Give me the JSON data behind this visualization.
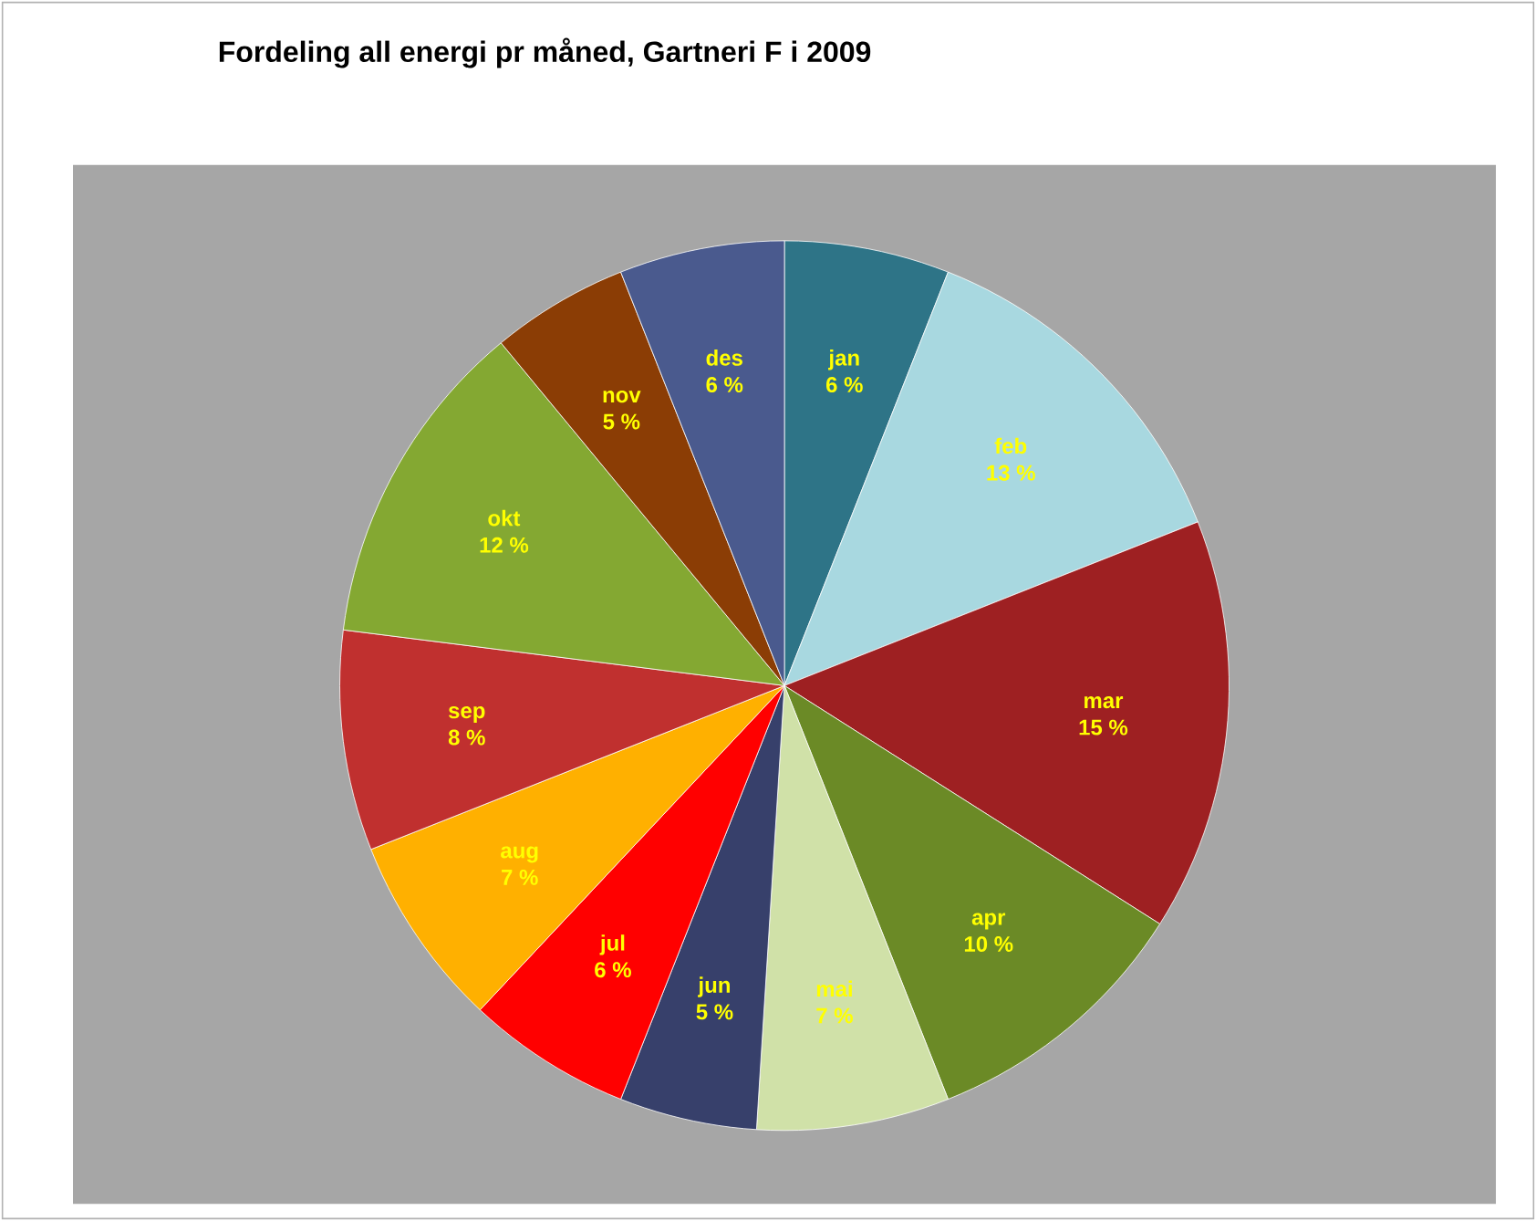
{
  "chart_data": {
    "type": "pie",
    "title": "Fordeling all energi pr måned, Gartneri F i 2009",
    "categories": [
      "jan",
      "feb",
      "mar",
      "apr",
      "mai",
      "jun",
      "jul",
      "aug",
      "sep",
      "okt",
      "nov",
      "des"
    ],
    "values": [
      6,
      13,
      15,
      10,
      7,
      5,
      6,
      7,
      8,
      12,
      5,
      6
    ],
    "value_labels": [
      "6 %",
      "13 %",
      "15 %",
      "10 %",
      "7 %",
      "5 %",
      "6 %",
      "7 %",
      "8 %",
      "12 %",
      "5 %",
      "6 %"
    ],
    "colors": [
      "#2e7487",
      "#a8d8e0",
      "#9e2022",
      "#6b8a26",
      "#d0e1a8",
      "#37406b",
      "#ff0000",
      "#ffb000",
      "#c0302f",
      "#84a832",
      "#8b3d05",
      "#4a5a8e"
    ]
  }
}
